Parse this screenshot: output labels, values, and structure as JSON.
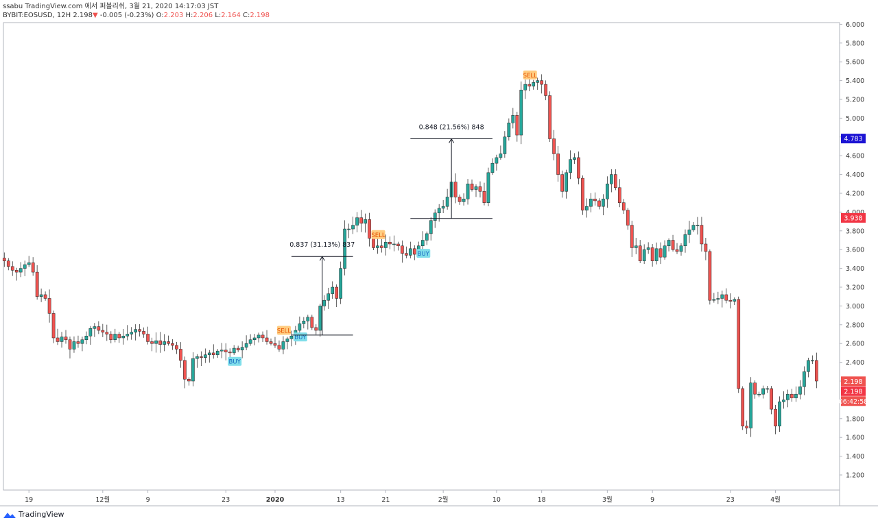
{
  "header": {
    "published": "ssabu TradingView.com 에서 퍼블리쉬, 3월 21, 2020 14:17:03 JST",
    "symbol": "BYBIT:EOSUSD, 12H",
    "last": "2.198",
    "change_arrow": "▼",
    "change": "-0.005 (-0.23%)",
    "o_label": "O:",
    "o_value": "2.203",
    "h_label": "H:",
    "h_value": "2.206",
    "l_label": "L:",
    "l_value": "2.164",
    "c_label": "C:",
    "c_value": "2.198"
  },
  "footer": {
    "brand": "TradingView"
  },
  "colors": {
    "up": "#26a69a",
    "down": "#ef5350",
    "buy_bg": "#80deea",
    "sell_bg": "#ffcc80",
    "price_blue": "#0000ff",
    "price_red": "#f23645"
  },
  "chart_data": {
    "type": "candlestick",
    "y_ticks": [
      "1.200",
      "1.400",
      "1.600",
      "1.800",
      "2.000",
      "2.200",
      "2.400",
      "2.600",
      "2.800",
      "3.000",
      "3.200",
      "3.400",
      "3.600",
      "3.800",
      "4.000",
      "4.200",
      "4.400",
      "4.600",
      "4.800",
      "5.000",
      "5.200",
      "5.400",
      "5.600",
      "5.800",
      "6.000"
    ],
    "ylim": [
      1.0,
      6.0
    ],
    "x_ticks": [
      {
        "label": "19",
        "i": 6
      },
      {
        "label": "12월",
        "i": 24
      },
      {
        "label": "9",
        "i": 35
      },
      {
        "label": "23",
        "i": 54
      },
      {
        "label": "2020",
        "i": 66
      },
      {
        "label": "13",
        "i": 82
      },
      {
        "label": "21",
        "i": 93
      },
      {
        "label": "2월",
        "i": 107
      },
      {
        "label": "10",
        "i": 120
      },
      {
        "label": "18",
        "i": 131
      },
      {
        "label": "3월",
        "i": 147
      },
      {
        "label": "9",
        "i": 158
      },
      {
        "label": "23",
        "i": 177
      },
      {
        "label": "4월",
        "i": 188
      }
    ],
    "x_bold": [
      "2020"
    ],
    "closes": [
      3.48,
      3.42,
      3.38,
      3.36,
      3.4,
      3.44,
      3.46,
      3.36,
      3.1,
      3.12,
      3.08,
      2.92,
      2.66,
      2.62,
      2.67,
      2.64,
      2.54,
      2.62,
      2.6,
      2.64,
      2.68,
      2.76,
      2.78,
      2.74,
      2.72,
      2.7,
      2.64,
      2.7,
      2.66,
      2.68,
      2.7,
      2.72,
      2.75,
      2.73,
      2.7,
      2.62,
      2.6,
      2.63,
      2.59,
      2.62,
      2.6,
      2.58,
      2.54,
      2.42,
      2.22,
      2.2,
      2.44,
      2.46,
      2.45,
      2.48,
      2.5,
      2.48,
      2.52,
      2.53,
      2.51,
      2.5,
      2.55,
      2.53,
      2.56,
      2.6,
      2.64,
      2.66,
      2.69,
      2.66,
      2.62,
      2.6,
      2.58,
      2.54,
      2.62,
      2.65,
      2.68,
      2.74,
      2.81,
      2.84,
      2.88,
      2.77,
      2.74,
      3.0,
      3.06,
      3.13,
      3.2,
      3.08,
      3.4,
      3.82,
      3.82,
      3.86,
      3.94,
      3.88,
      3.92,
      3.72,
      3.62,
      3.64,
      3.62,
      3.68,
      3.66,
      3.66,
      3.64,
      3.56,
      3.54,
      3.61,
      3.55,
      3.64,
      3.7,
      3.77,
      3.91,
      3.99,
      4.04,
      4.06,
      4.16,
      4.32,
      4.16,
      4.11,
      4.14,
      4.3,
      4.24,
      4.27,
      4.22,
      4.1,
      4.42,
      4.52,
      4.58,
      4.62,
      4.8,
      4.95,
      5.03,
      4.82,
      5.3,
      5.36,
      5.34,
      5.38,
      5.4,
      5.36,
      5.24,
      4.78,
      4.62,
      4.4,
      4.22,
      4.42,
      4.56,
      4.58,
      4.36,
      4.02,
      4.06,
      4.14,
      4.12,
      4.06,
      4.14,
      4.3,
      4.4,
      4.26,
      4.1,
      4.02,
      3.86,
      3.62,
      3.64,
      3.48,
      3.6,
      3.62,
      3.48,
      3.61,
      3.52,
      3.64,
      3.7,
      3.6,
      3.58,
      3.64,
      3.76,
      3.81,
      3.86,
      3.86,
      3.66,
      3.58,
      3.06,
      3.07,
      3.08,
      3.12,
      3.06,
      3.05,
      3.07,
      2.12,
      1.72,
      1.7,
      2.18,
      2.06,
      2.06,
      2.12,
      2.12,
      1.9,
      1.72,
      1.98,
      2.0,
      2.06,
      2.02,
      2.06,
      2.14,
      2.3,
      2.42,
      2.42,
      2.2
    ],
    "last_price": "2.198",
    "price_labels": [
      {
        "text": "4.783",
        "value": 4.783,
        "bg": "#1c14d4"
      },
      {
        "text": "3.938",
        "value": 3.938,
        "bg": "#f23645"
      },
      {
        "text": "2.198",
        "value": 2.198,
        "bg": "#ef5350"
      },
      {
        "text": "2.198",
        "value": 2.198,
        "bg": "#f23645",
        "offset": 1
      },
      {
        "text": "06:42:58",
        "value": 2.198,
        "bg": "#ef5350",
        "offset": 2
      }
    ],
    "signals": [
      {
        "type": "BUY",
        "i": 56
      },
      {
        "type": "SELL",
        "i": 68
      },
      {
        "type": "BUY",
        "i": 72
      },
      {
        "type": "SELL",
        "i": 91
      },
      {
        "type": "BUY",
        "i": 102
      },
      {
        "type": "SELL",
        "i": 128
      }
    ],
    "measures": [
      {
        "label": "0.837 (31.13%) 837",
        "i_start": 70,
        "i_end": 85,
        "low": 2.69,
        "high": 3.527
      },
      {
        "label": "0.848 (21.56%) 848",
        "i_start": 99,
        "i_end": 119,
        "low": 3.932,
        "high": 4.78
      }
    ]
  }
}
